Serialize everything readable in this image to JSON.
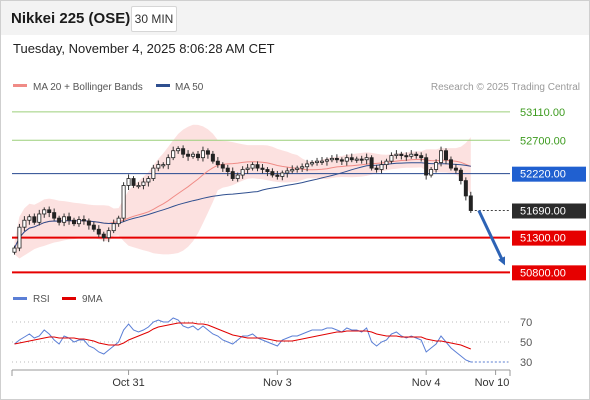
{
  "header": {
    "title": "Nikkei 225 (OSE)",
    "timeframe": "30 MIN",
    "datetime": "Tuesday, November 4, 2025 8:06:28 AM CET"
  },
  "legend": {
    "items": [
      {
        "label": "MA 20 + Bollinger Bands",
        "color": "#f08b86"
      },
      {
        "label": "MA 50",
        "color": "#2f4f8f"
      }
    ],
    "credit": "Research © 2025 Trading Central"
  },
  "rsi_legend": {
    "items": [
      {
        "label": "RSI",
        "color": "#5b7fd6"
      },
      {
        "label": "9MA",
        "color": "#e00000"
      }
    ]
  },
  "chart_data": {
    "type": "line",
    "price_range": [
      50690,
      53280
    ],
    "rsi_range": [
      20,
      80
    ],
    "rsi_ticks": [
      "70",
      "50",
      "30"
    ],
    "x_ticks": [
      {
        "label": "Oct 31",
        "index": 23
      },
      {
        "label": "Nov 3",
        "index": 53
      },
      {
        "label": "Nov 4",
        "index": 83
      },
      {
        "label": "Nov 10",
        "index": 97
      }
    ],
    "levels": [
      {
        "label": "53110.00",
        "price": 53110,
        "kind": "resistance"
      },
      {
        "label": "52700.00",
        "price": 52700,
        "kind": "resistance"
      },
      {
        "label": "52220.00",
        "price": 52220,
        "kind": "pivot"
      },
      {
        "label": "51690.00",
        "price": 51690,
        "kind": "last"
      },
      {
        "label": "51300.00",
        "price": 51300,
        "kind": "support"
      },
      {
        "label": "50800.00",
        "price": 50800,
        "kind": "support"
      }
    ],
    "forecast": {
      "from_price": 51690,
      "to_price": 50900
    },
    "closes": [
      51150,
      51450,
      51550,
      51600,
      51520,
      51640,
      51700,
      51660,
      51580,
      51520,
      51600,
      51550,
      51500,
      51560,
      51540,
      51480,
      51420,
      51350,
      51300,
      51400,
      51500,
      51580,
      52050,
      52150,
      52050,
      52050,
      52100,
      52150,
      52300,
      52350,
      52350,
      52450,
      52550,
      52580,
      52500,
      52470,
      52500,
      52450,
      52550,
      52500,
      52400,
      52350,
      52300,
      52250,
      52150,
      52200,
      52280,
      52300,
      52350,
      52300,
      52280,
      52250,
      52200,
      52180,
      52230,
      52260,
      52280,
      52300,
      52320,
      52360,
      52380,
      52400,
      52400,
      52420,
      52440,
      52420,
      52400,
      52450,
      52420,
      52430,
      52420,
      52450,
      52300,
      52280,
      52350,
      52400,
      52480,
      52500,
      52480,
      52470,
      52500,
      52480,
      52450,
      52200,
      52280,
      52380,
      52550,
      52420,
      52300,
      52270,
      52120,
      51900,
      51690
    ],
    "rsi": [
      48,
      52,
      55,
      58,
      54,
      56,
      62,
      58,
      52,
      48,
      56,
      54,
      50,
      52,
      52,
      46,
      44,
      40,
      38,
      42,
      46,
      50,
      62,
      68,
      62,
      60,
      62,
      65,
      70,
      72,
      70,
      70,
      74,
      72,
      66,
      64,
      66,
      62,
      66,
      62,
      58,
      56,
      52,
      50,
      48,
      52,
      56,
      56,
      58,
      54,
      52,
      50,
      48,
      46,
      52,
      54,
      56,
      56,
      58,
      60,
      62,
      62,
      62,
      64,
      64,
      62,
      60,
      64,
      62,
      62,
      60,
      64,
      50,
      46,
      50,
      52,
      58,
      60,
      56,
      54,
      56,
      54,
      52,
      40,
      44,
      48,
      56,
      50,
      44,
      40,
      36,
      32,
      30
    ],
    "rsi_ma": [
      48,
      49,
      50,
      51,
      52,
      53,
      54,
      55,
      55,
      54,
      54,
      54,
      54,
      53,
      53,
      52,
      51,
      49,
      48,
      47,
      47,
      47,
      49,
      52,
      54,
      56,
      58,
      60,
      63,
      65,
      66,
      67,
      68,
      69,
      69,
      69,
      69,
      68,
      68,
      67,
      65,
      63,
      61,
      59,
      57,
      56,
      55,
      54,
      54,
      54,
      54,
      53,
      52,
      51,
      51,
      51,
      51,
      52,
      53,
      54,
      55,
      56,
      57,
      58,
      59,
      60,
      60,
      61,
      61,
      61,
      61,
      61,
      60,
      58,
      57,
      56,
      56,
      56,
      55,
      55,
      55,
      55,
      55,
      53,
      52,
      51,
      51,
      50,
      49,
      48,
      47,
      45,
      43
    ]
  }
}
